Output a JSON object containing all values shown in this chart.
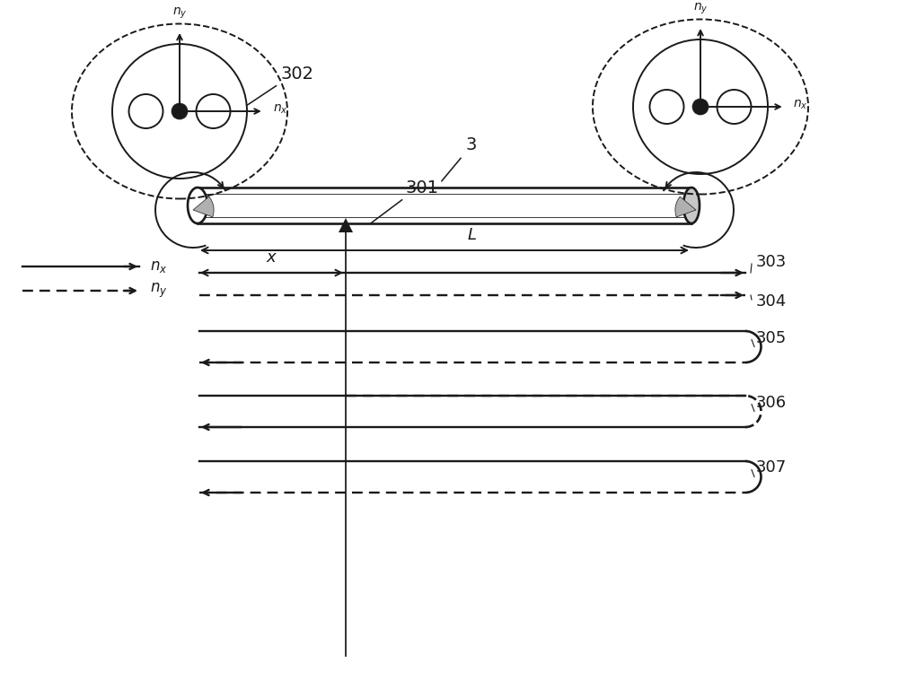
{
  "bg_color": "#ffffff",
  "line_color": "#1a1a1a",
  "fig_w": 10.0,
  "fig_h": 7.59,
  "dpi": 100
}
